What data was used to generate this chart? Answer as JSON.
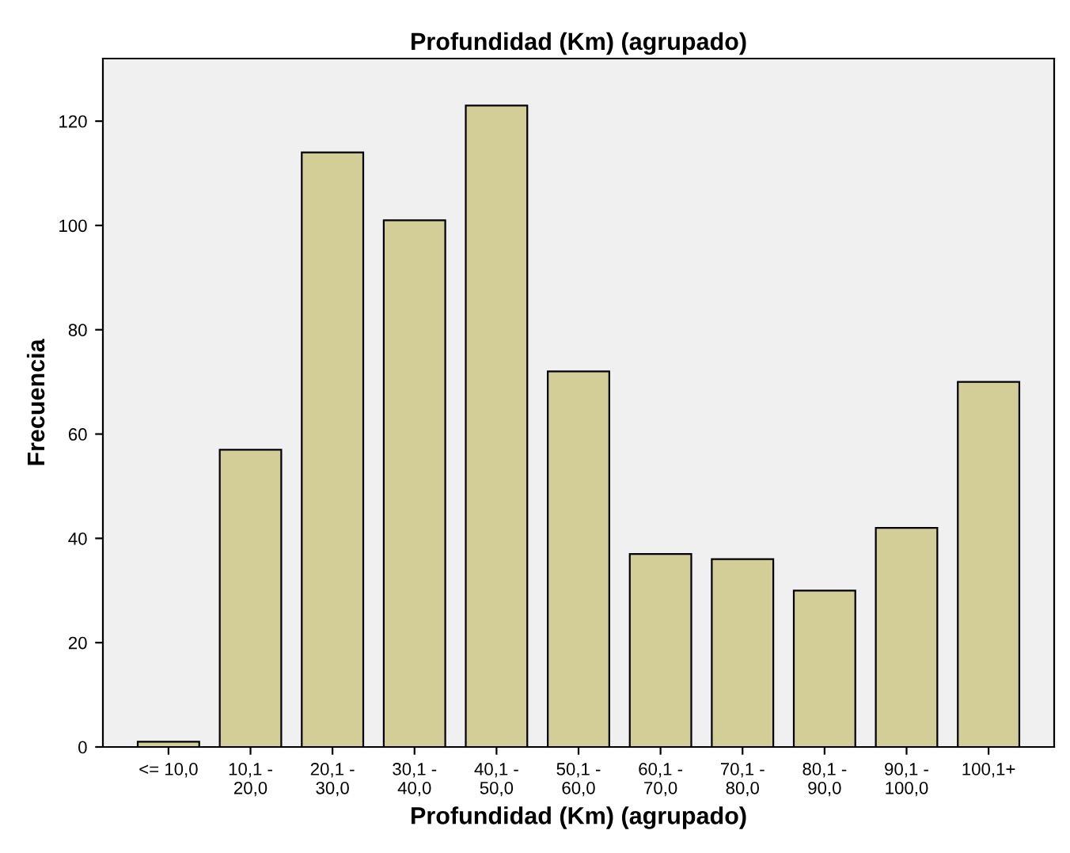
{
  "chart_data": {
    "type": "bar",
    "title": "Profundidad (Km) (agrupado)",
    "xlabel": "Profundidad (Km) (agrupado)",
    "ylabel": "Frecuencia",
    "categories": [
      "<= 10,0",
      "10,1 -\n20,0",
      "20,1 -\n30,0",
      "30,1 -\n40,0",
      "40,1 -\n50,0",
      "50,1 -\n60,0",
      "60,1 -\n70,0",
      "70,1 -\n80,0",
      "80,1 -\n90,0",
      "90,1 -\n100,0",
      "100,1+"
    ],
    "values": [
      1,
      57,
      114,
      101,
      123,
      72,
      37,
      36,
      30,
      42,
      70
    ],
    "color": "#d3ce97",
    "ylim": [
      0,
      132
    ],
    "yticks": [
      0,
      20,
      40,
      60,
      80,
      100,
      120
    ],
    "grid": false,
    "legend": false
  }
}
